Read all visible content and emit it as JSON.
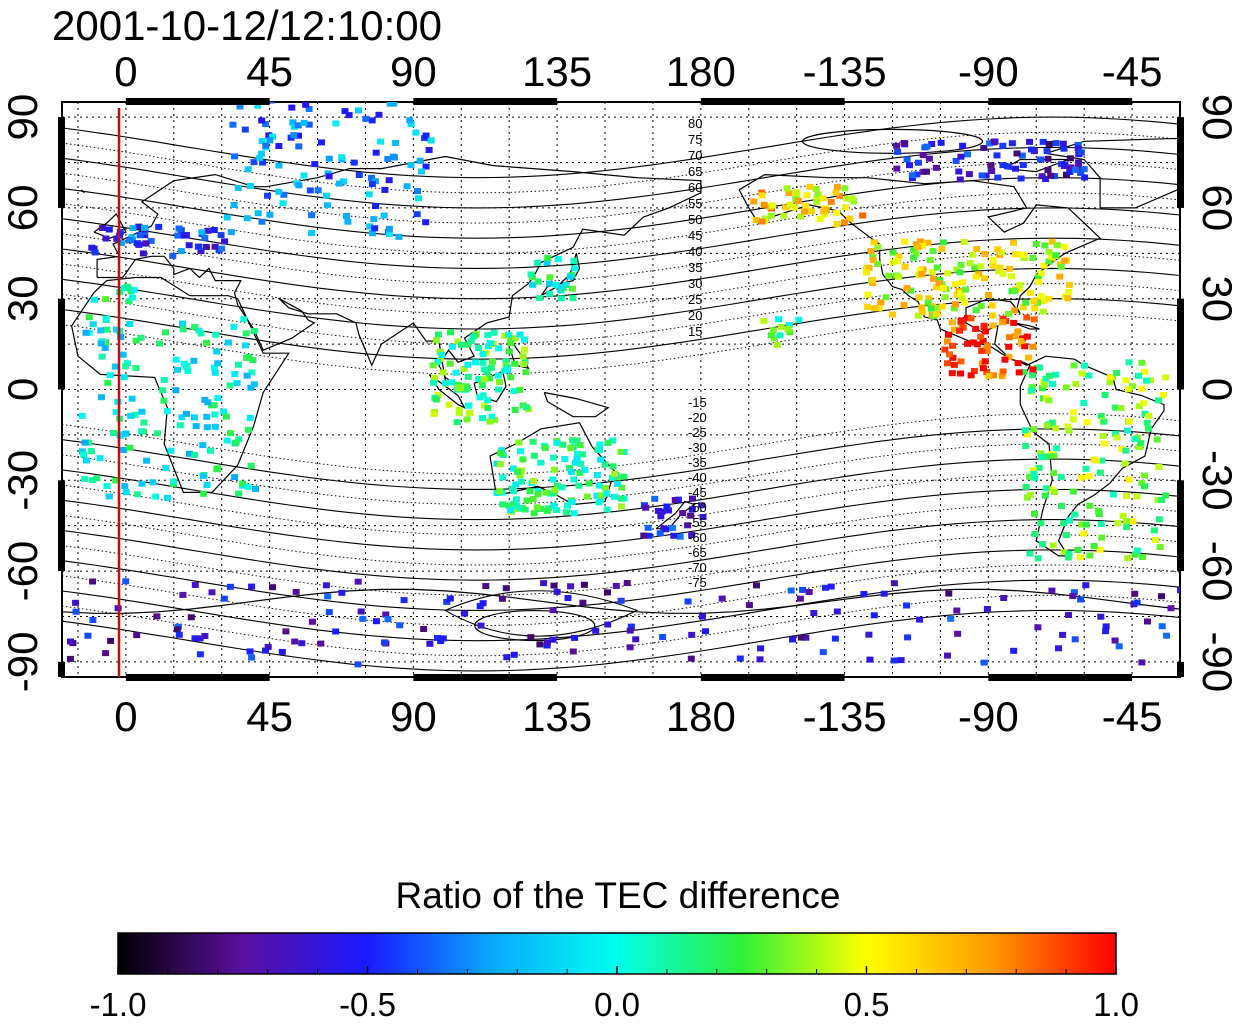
{
  "timestamp": "2001-10-12/12:10:00",
  "map": {
    "lon_ticks_top": [
      "0",
      "45",
      "90",
      "135",
      "180",
      "-135",
      "-90",
      "-45"
    ],
    "lon_ticks_bottom": [
      "0",
      "45",
      "90",
      "135",
      "180",
      "-135",
      "-90",
      "-45"
    ],
    "lat_ticks_left": [
      "90",
      "60",
      "30",
      "0",
      "-30",
      "-60",
      "-90"
    ],
    "lat_ticks_right": [
      "90",
      "60",
      "30",
      "0",
      "-30",
      "-60",
      "-90"
    ],
    "contour_labels_north": [
      "80",
      "75",
      "70",
      "65",
      "60",
      "55",
      "50",
      "45",
      "40",
      "35",
      "30",
      "25",
      "20",
      "15"
    ],
    "contour_labels_south": [
      "-15",
      "-20",
      "-25",
      "-30",
      "-35",
      "-40",
      "-45",
      "-50",
      "-55",
      "-60",
      "-65",
      "-70",
      "-75"
    ],
    "meridian_marker_color": "#e00000",
    "lon_range": [
      -20,
      330
    ],
    "lat_range": [
      -95,
      95
    ]
  },
  "colorbar": {
    "title": "Ratio of the TEC difference",
    "ticks": [
      "-1.0",
      "-0.5",
      "0.0",
      "0.5",
      "1.0"
    ],
    "range": [
      -1.0,
      1.0
    ],
    "colors": [
      "#000000",
      "#5a0fa0",
      "#1a1aff",
      "#0aa8ff",
      "#00ffee",
      "#2ef03a",
      "#ffff00",
      "#ff9a00",
      "#ff0000"
    ]
  },
  "features": {
    "data_clusters": [
      {
        "region": "Europe",
        "value": -0.45
      },
      {
        "region": "Iberia and Mediterranean",
        "value": 0.1
      },
      {
        "region": "East Asia",
        "value": -0.3
      },
      {
        "region": "Japan and Korea",
        "value": 0.1
      },
      {
        "region": "North America",
        "value": 0.5
      },
      {
        "region": "Alaska",
        "value": 0.6
      },
      {
        "region": "Canadian Arctic",
        "value": -0.6
      },
      {
        "region": "Southeast Asia",
        "value": 0.2
      },
      {
        "region": "Australia",
        "value": 0.15
      },
      {
        "region": "New Zealand",
        "value": -0.55
      },
      {
        "region": "South America",
        "value": 0.3
      },
      {
        "region": "Central America",
        "value": 0.9
      },
      {
        "region": "Hawaii",
        "value": 0.2
      },
      {
        "region": "Antarctica",
        "value": -0.6
      },
      {
        "region": "Africa",
        "value": 0.0
      }
    ]
  }
}
